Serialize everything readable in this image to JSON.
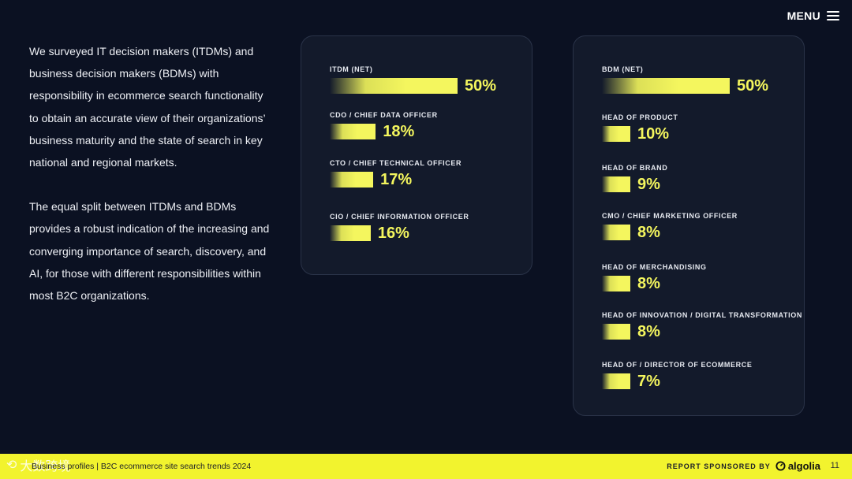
{
  "menu": {
    "label": "MENU"
  },
  "intro": {
    "paragraph1": "We surveyed IT decision makers (ITDMs) and business decision makers (BDMs) with responsibility in ecommerce search functionality to obtain an accurate view of their organizations’ business maturity and the state of search in key national and regional markets.",
    "paragraph2": "The equal split between ITDMs and BDMs provides a robust indication of the increasing and converging importance of search, discovery, and AI, for those with different responsibilities within most B2C organizations."
  },
  "chart_data": [
    {
      "type": "bar",
      "title": "ITDM",
      "categories": [
        "ITDM (NET)",
        "CDO / CHIEF DATA OFFICER",
        "CTO / CHIEF TECHNICAL OFFICER",
        "CIO / CHIEF INFORMATION OFFICER"
      ],
      "values": [
        50,
        18,
        17,
        16
      ],
      "value_labels": [
        "50%",
        "18%",
        "17%",
        "16%"
      ],
      "unit": "%",
      "xlim": [
        0,
        50
      ]
    },
    {
      "type": "bar",
      "title": "BDM",
      "categories": [
        "BDM (NET)",
        "HEAD OF PRODUCT",
        "HEAD OF BRAND",
        "CMO / CHIEF MARKETING OFFICER",
        "HEAD OF MERCHANDISING",
        "HEAD OF INNOVATION / DIGITAL TRANSFORMATION",
        "HEAD OF / DIRECTOR OF ECOMMERCE"
      ],
      "values": [
        50,
        10,
        9,
        8,
        8,
        8,
        7
      ],
      "value_labels": [
        "50%",
        "10%",
        "9%",
        "8%",
        "8%",
        "8%",
        "7%"
      ],
      "unit": "%",
      "xlim": [
        0,
        50
      ]
    }
  ],
  "footer": {
    "left_text": "Business profiles | B2C ecommerce site search trends 2024",
    "sponsor_label": "REPORT SPONSORED BY",
    "brand": "algolia",
    "page_number": "11",
    "watermark": "大数跨境"
  },
  "colors": {
    "background": "#0b1122",
    "accent": "#f4f65e",
    "panel": "#131a2b",
    "footer": "#f2f32e"
  }
}
